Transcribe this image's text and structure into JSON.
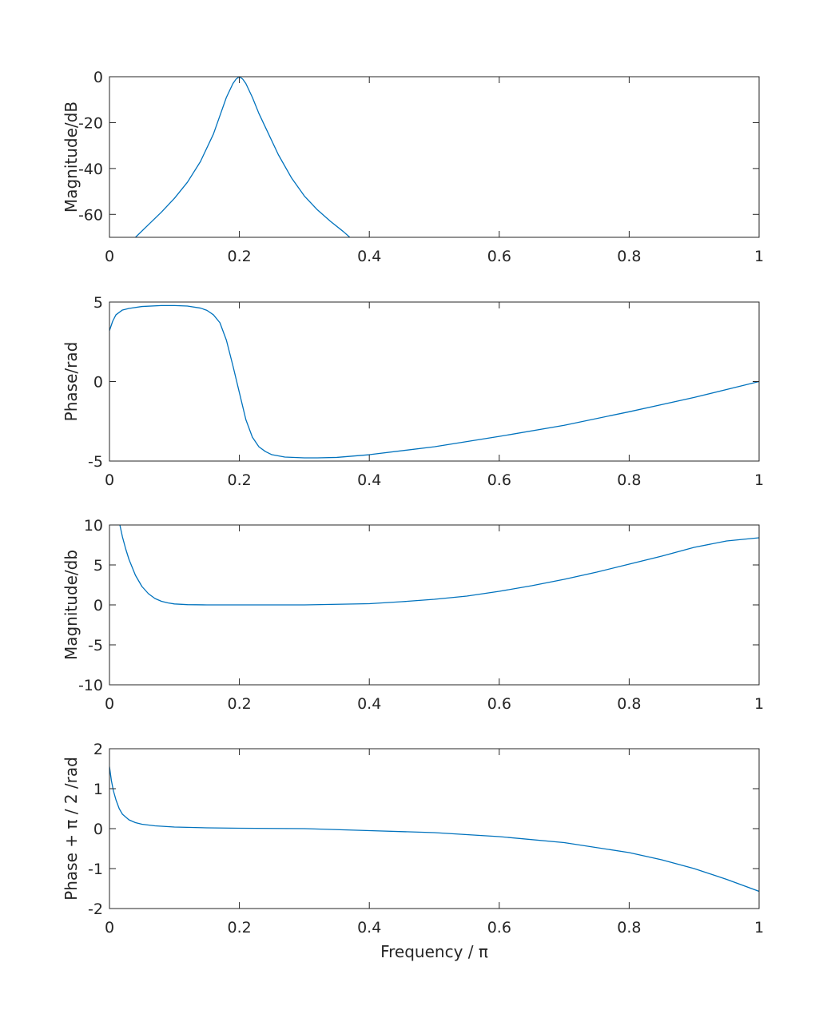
{
  "colors": {
    "series": "#0072BD",
    "axes": "#262626",
    "background": "#ffffff"
  },
  "chart_data": [
    {
      "type": "line",
      "ylabel": "Magnitude/dB",
      "xlabel": "",
      "xlim": [
        0,
        1
      ],
      "ylim": [
        -70,
        0
      ],
      "xticks": [
        0,
        0.2,
        0.4,
        0.6,
        0.8,
        1
      ],
      "xtick_labels": [
        "0",
        "0.2",
        "0.4",
        "0.6",
        "0.8",
        "1"
      ],
      "yticks": [
        0,
        -20,
        -40,
        -60
      ],
      "ytick_labels": [
        "0",
        "-20",
        "-40",
        "-60"
      ],
      "series": [
        {
          "name": "magnitude",
          "x": [
            0.04,
            0.06,
            0.08,
            0.1,
            0.12,
            0.14,
            0.16,
            0.17,
            0.18,
            0.19,
            0.195,
            0.2,
            0.205,
            0.21,
            0.22,
            0.23,
            0.24,
            0.26,
            0.28,
            0.3,
            0.32,
            0.34,
            0.36,
            0.37
          ],
          "y": [
            -70,
            -64.5,
            -59,
            -53,
            -46,
            -37,
            -25,
            -17,
            -9,
            -3,
            -1,
            0,
            -1,
            -3,
            -9,
            -16,
            -22,
            -34,
            -44,
            -52,
            -58,
            -63,
            -67.5,
            -70
          ]
        }
      ]
    },
    {
      "type": "line",
      "ylabel": "Phase/rad",
      "xlabel": "",
      "xlim": [
        0,
        1
      ],
      "ylim": [
        -5,
        5
      ],
      "xticks": [
        0,
        0.2,
        0.4,
        0.6,
        0.8,
        1
      ],
      "xtick_labels": [
        "0",
        "0.2",
        "0.4",
        "0.6",
        "0.8",
        "1"
      ],
      "yticks": [
        5,
        0,
        -5
      ],
      "ytick_labels": [
        "5",
        "0",
        "-5"
      ],
      "series": [
        {
          "name": "phase",
          "x": [
            0,
            0.005,
            0.01,
            0.02,
            0.03,
            0.05,
            0.08,
            0.1,
            0.12,
            0.14,
            0.15,
            0.16,
            0.17,
            0.18,
            0.19,
            0.2,
            0.21,
            0.22,
            0.23,
            0.24,
            0.25,
            0.27,
            0.3,
            0.32,
            0.35,
            0.4,
            0.5,
            0.6,
            0.7,
            0.8,
            0.9,
            1.0
          ],
          "y": [
            3.2,
            3.8,
            4.2,
            4.5,
            4.6,
            4.72,
            4.78,
            4.78,
            4.75,
            4.62,
            4.48,
            4.2,
            3.7,
            2.6,
            1.0,
            -0.7,
            -2.4,
            -3.5,
            -4.1,
            -4.4,
            -4.6,
            -4.75,
            -4.8,
            -4.8,
            -4.77,
            -4.6,
            -4.1,
            -3.45,
            -2.75,
            -1.9,
            -1.0,
            0
          ]
        }
      ]
    },
    {
      "type": "line",
      "ylabel": "Magnitude/db",
      "xlabel": "",
      "xlim": [
        0,
        1
      ],
      "ylim": [
        -10,
        10
      ],
      "xticks": [
        0,
        0.2,
        0.4,
        0.6,
        0.8,
        1
      ],
      "xtick_labels": [
        "0",
        "0.2",
        "0.4",
        "0.6",
        "0.8",
        "1"
      ],
      "yticks": [
        10,
        5,
        0,
        -5,
        -10
      ],
      "ytick_labels": [
        "10",
        "5",
        "0",
        "-5",
        "-10"
      ],
      "series": [
        {
          "name": "magnitude",
          "x": [
            0.016,
            0.02,
            0.025,
            0.03,
            0.04,
            0.05,
            0.06,
            0.07,
            0.08,
            0.09,
            0.1,
            0.12,
            0.15,
            0.2,
            0.3,
            0.4,
            0.45,
            0.5,
            0.55,
            0.6,
            0.65,
            0.7,
            0.75,
            0.8,
            0.85,
            0.9,
            0.95,
            1.0
          ],
          "y": [
            10,
            8.5,
            7.0,
            5.7,
            3.7,
            2.3,
            1.4,
            0.8,
            0.45,
            0.25,
            0.12,
            0.03,
            0,
            0,
            0,
            0.15,
            0.4,
            0.7,
            1.1,
            1.7,
            2.4,
            3.2,
            4.1,
            5.1,
            6.1,
            7.2,
            8.0,
            8.4
          ]
        }
      ]
    },
    {
      "type": "line",
      "ylabel": "Phase + π / 2 /rad",
      "xlabel": "Frequency / π",
      "xlim": [
        0,
        1
      ],
      "ylim": [
        -2,
        2
      ],
      "xticks": [
        0,
        0.2,
        0.4,
        0.6,
        0.8,
        1
      ],
      "xtick_labels": [
        "0",
        "0.2",
        "0.4",
        "0.6",
        "0.8",
        "1"
      ],
      "yticks": [
        2,
        1,
        0,
        -1,
        -2
      ],
      "ytick_labels": [
        "2",
        "1",
        "0",
        "-1",
        "-2"
      ],
      "series": [
        {
          "name": "phase",
          "x": [
            0,
            0.003,
            0.006,
            0.01,
            0.015,
            0.02,
            0.03,
            0.04,
            0.05,
            0.07,
            0.1,
            0.15,
            0.2,
            0.3,
            0.4,
            0.5,
            0.6,
            0.7,
            0.8,
            0.85,
            0.9,
            0.95,
            1.0
          ],
          "y": [
            1.55,
            1.2,
            0.95,
            0.72,
            0.5,
            0.36,
            0.22,
            0.15,
            0.11,
            0.07,
            0.04,
            0.02,
            0.01,
            0,
            -0.05,
            -0.1,
            -0.2,
            -0.35,
            -0.6,
            -0.78,
            -1.0,
            -1.27,
            -1.57
          ]
        }
      ]
    }
  ]
}
